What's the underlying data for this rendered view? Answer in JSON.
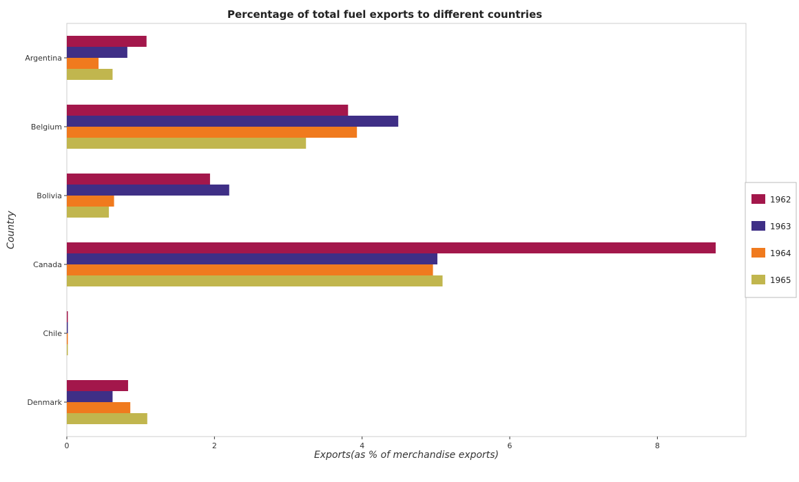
{
  "chart_data": {
    "type": "bar",
    "orientation": "horizontal",
    "title": "Percentage of total fuel exports to different countries",
    "xlabel": "Exports(as % of merchandise exports)",
    "ylabel": "Country",
    "xlim": [
      0,
      9.2
    ],
    "xticks": [
      0,
      2,
      4,
      6,
      8
    ],
    "categories": [
      "Argentina",
      "Belgium",
      "Bolivia",
      "Canada",
      "Chile",
      "Denmark"
    ],
    "series": [
      {
        "name": "1962",
        "color": "#a3174b",
        "values": [
          1.08,
          3.81,
          1.94,
          8.79,
          0.01,
          0.83
        ]
      },
      {
        "name": "1963",
        "color": "#3f2f86",
        "values": [
          0.82,
          4.49,
          2.2,
          5.02,
          0.01,
          0.62
        ]
      },
      {
        "name": "1964",
        "color": "#f07a1e",
        "values": [
          0.43,
          3.93,
          0.64,
          4.96,
          0.01,
          0.86
        ]
      },
      {
        "name": "1965",
        "color": "#c1b64e",
        "values": [
          0.62,
          3.24,
          0.57,
          5.09,
          0.01,
          1.09
        ]
      }
    ],
    "grid": false,
    "legend_position": "right"
  }
}
